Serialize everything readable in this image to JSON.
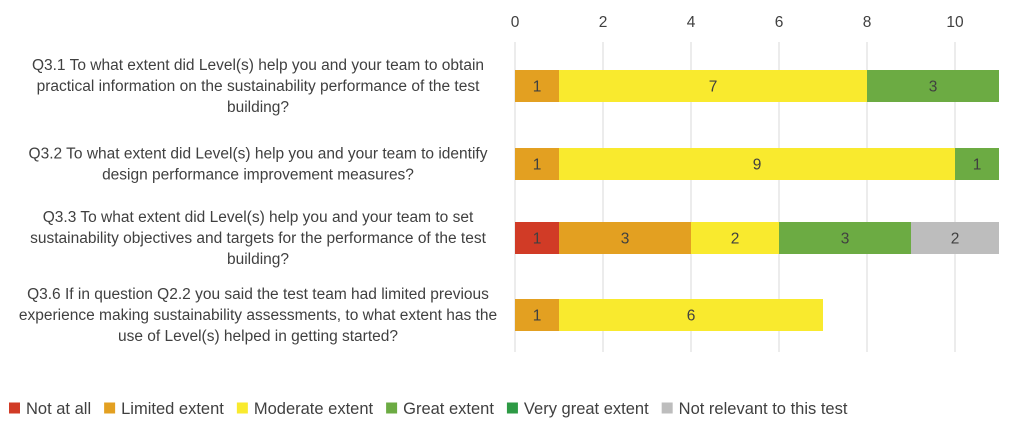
{
  "chart_data": {
    "type": "bar",
    "orientation": "horizontal",
    "stacked": true,
    "title": "",
    "xlabel": "",
    "ylabel": "",
    "xlim": [
      0,
      11
    ],
    "x_ticks": [
      0,
      2,
      4,
      6,
      8,
      10
    ],
    "x_axis_position": "top",
    "grid": true,
    "legend_position": "bottom",
    "categories": [
      [
        "Q3.1 To what extent did Level(s) help you and your team to obtain",
        "practical information on the sustainability performance of the test",
        "building?"
      ],
      [
        "Q3.2 To what extent did Level(s) help you and your team to identify",
        "design performance improvement measures?"
      ],
      [
        "Q3.3 To what extent did Level(s) help you and your team to set",
        "sustainability objectives and targets for the performance of the test",
        "building?"
      ],
      [
        "Q3.6 If in question Q2.2 you said the test team had limited previous",
        "experience making sustainability assessments, to what extent has the",
        "use of Level(s) helped in getting started?"
      ]
    ],
    "series": [
      {
        "name": "Not at all",
        "color": "#d13b26",
        "values": [
          0,
          0,
          1,
          0
        ]
      },
      {
        "name": "Limited extent",
        "color": "#e3a021",
        "values": [
          1,
          1,
          3,
          1
        ]
      },
      {
        "name": "Moderate extent",
        "color": "#f9ea2e",
        "values": [
          7,
          9,
          2,
          6
        ]
      },
      {
        "name": "Great extent",
        "color": "#6cab43",
        "values": [
          3,
          1,
          3,
          0
        ]
      },
      {
        "name": "Very great extent",
        "color": "#2e9a45",
        "values": [
          0,
          0,
          0,
          0
        ]
      },
      {
        "name": "Not relevant to this test",
        "color": "#bdbdbd",
        "values": [
          0,
          0,
          2,
          0
        ]
      }
    ]
  }
}
